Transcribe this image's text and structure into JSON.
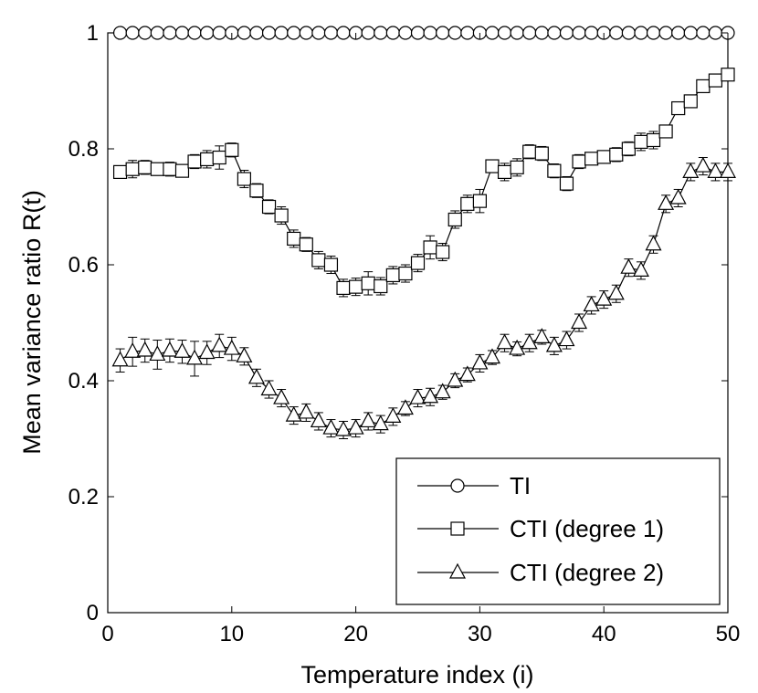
{
  "chart_data": {
    "type": "line",
    "title": "",
    "xlabel": "Temperature index (i)",
    "ylabel": "Mean variance ratio R(t)",
    "xlim": [
      0,
      50
    ],
    "ylim": [
      0,
      1
    ],
    "xticks": [
      0,
      10,
      20,
      30,
      40,
      50
    ],
    "yticks": [
      0,
      0.2,
      0.4,
      0.6,
      0.8,
      1
    ],
    "xtick_labels": [
      "0",
      "10",
      "20",
      "30",
      "40",
      "50"
    ],
    "ytick_labels": [
      "0",
      "0.2",
      "0.4",
      "0.6",
      "0.8",
      "1"
    ],
    "grid": false,
    "legend_position": "bottom-right",
    "x": [
      1,
      2,
      3,
      4,
      5,
      6,
      7,
      8,
      9,
      10,
      11,
      12,
      13,
      14,
      15,
      16,
      17,
      18,
      19,
      20,
      21,
      22,
      23,
      24,
      25,
      26,
      27,
      28,
      29,
      30,
      31,
      32,
      33,
      34,
      35,
      36,
      37,
      38,
      39,
      40,
      41,
      42,
      43,
      44,
      45,
      46,
      47,
      48,
      49,
      50
    ],
    "series": [
      {
        "name": "TI",
        "marker": "circle",
        "values": [
          1,
          1,
          1,
          1,
          1,
          1,
          1,
          1,
          1,
          1,
          1,
          1,
          1,
          1,
          1,
          1,
          1,
          1,
          1,
          1,
          1,
          1,
          1,
          1,
          1,
          1,
          1,
          1,
          1,
          1,
          1,
          1,
          1,
          1,
          1,
          1,
          1,
          1,
          1,
          1,
          1,
          1,
          1,
          1,
          1,
          1,
          1,
          1,
          1,
          1
        ],
        "errors": [
          0,
          0,
          0,
          0,
          0,
          0,
          0,
          0,
          0,
          0,
          0,
          0,
          0,
          0,
          0,
          0,
          0,
          0,
          0,
          0,
          0,
          0,
          0,
          0,
          0,
          0,
          0,
          0,
          0,
          0,
          0,
          0,
          0,
          0,
          0,
          0,
          0,
          0,
          0,
          0,
          0,
          0,
          0,
          0,
          0,
          0,
          0,
          0,
          0,
          0
        ]
      },
      {
        "name": "CTI (degree 1)",
        "marker": "square",
        "values": [
          0.76,
          0.765,
          0.768,
          0.765,
          0.765,
          0.762,
          0.778,
          0.782,
          0.785,
          0.798,
          0.748,
          0.728,
          0.7,
          0.685,
          0.645,
          0.635,
          0.608,
          0.6,
          0.56,
          0.562,
          0.568,
          0.563,
          0.582,
          0.585,
          0.603,
          0.63,
          0.622,
          0.678,
          0.705,
          0.71,
          0.77,
          0.76,
          0.768,
          0.795,
          0.792,
          0.762,
          0.74,
          0.778,
          0.783,
          0.786,
          0.79,
          0.8,
          0.812,
          0.815,
          0.83,
          0.87,
          0.882,
          0.908,
          0.918,
          0.928
        ],
        "errors": [
          0.01,
          0.015,
          0.012,
          0.01,
          0.012,
          0.01,
          0.012,
          0.015,
          0.02,
          0.012,
          0.015,
          0.012,
          0.012,
          0.015,
          0.015,
          0.012,
          0.015,
          0.015,
          0.015,
          0.015,
          0.02,
          0.015,
          0.015,
          0.015,
          0.015,
          0.02,
          0.015,
          0.015,
          0.015,
          0.02,
          0.01,
          0.015,
          0.015,
          0.012,
          0.012,
          0.012,
          0.012,
          0.012,
          0.01,
          0.01,
          0.012,
          0.012,
          0.015,
          0.015,
          0.01,
          0.01,
          0.01,
          0.01,
          0.01,
          0.01
        ]
      },
      {
        "name": "CTI (degree 2)",
        "marker": "triangle",
        "values": [
          0.435,
          0.45,
          0.452,
          0.445,
          0.452,
          0.45,
          0.438,
          0.448,
          0.46,
          0.455,
          0.442,
          0.405,
          0.385,
          0.37,
          0.34,
          0.345,
          0.33,
          0.318,
          0.315,
          0.318,
          0.33,
          0.325,
          0.338,
          0.352,
          0.37,
          0.372,
          0.38,
          0.4,
          0.41,
          0.43,
          0.44,
          0.465,
          0.455,
          0.465,
          0.475,
          0.46,
          0.47,
          0.5,
          0.53,
          0.54,
          0.55,
          0.595,
          0.59,
          0.635,
          0.705,
          0.715,
          0.76,
          0.77,
          0.76,
          0.76
        ],
        "errors": [
          0.02,
          0.025,
          0.02,
          0.025,
          0.02,
          0.02,
          0.03,
          0.02,
          0.02,
          0.02,
          0.015,
          0.015,
          0.015,
          0.015,
          0.015,
          0.015,
          0.015,
          0.015,
          0.015,
          0.015,
          0.015,
          0.015,
          0.015,
          0.012,
          0.015,
          0.015,
          0.012,
          0.012,
          0.012,
          0.015,
          0.012,
          0.015,
          0.012,
          0.015,
          0.012,
          0.015,
          0.015,
          0.015,
          0.015,
          0.015,
          0.015,
          0.015,
          0.015,
          0.015,
          0.015,
          0.015,
          0.015,
          0.015,
          0.015,
          0.015
        ]
      }
    ]
  }
}
